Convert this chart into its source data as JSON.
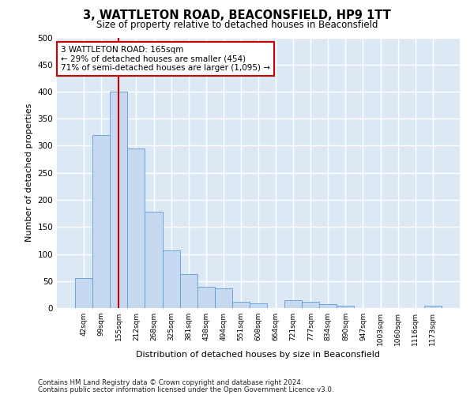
{
  "title": "3, WATTLETON ROAD, BEACONSFIELD, HP9 1TT",
  "subtitle": "Size of property relative to detached houses in Beaconsfield",
  "xlabel": "Distribution of detached houses by size in Beaconsfield",
  "ylabel": "Number of detached properties",
  "footnote1": "Contains HM Land Registry data © Crown copyright and database right 2024.",
  "footnote2": "Contains public sector information licensed under the Open Government Licence v3.0.",
  "categories": [
    "42sqm",
    "99sqm",
    "155sqm",
    "212sqm",
    "268sqm",
    "325sqm",
    "381sqm",
    "438sqm",
    "494sqm",
    "551sqm",
    "608sqm",
    "664sqm",
    "721sqm",
    "777sqm",
    "834sqm",
    "890sqm",
    "947sqm",
    "1003sqm",
    "1060sqm",
    "1116sqm",
    "1173sqm"
  ],
  "values": [
    55,
    320,
    400,
    295,
    178,
    107,
    63,
    40,
    36,
    11,
    9,
    0,
    15,
    11,
    8,
    4,
    0,
    0,
    0,
    0,
    4
  ],
  "bar_color": "#c6d9f0",
  "bar_edge_color": "#5b9bd5",
  "vline_x_idx": 2,
  "vline_color": "#cc0000",
  "annotation_text": "3 WATTLETON ROAD: 165sqm\n← 29% of detached houses are smaller (454)\n71% of semi-detached houses are larger (1,095) →",
  "annotation_box_color": "#ffffff",
  "annotation_box_edge": "#cc0000",
  "ylim": [
    0,
    500
  ],
  "yticks": [
    0,
    50,
    100,
    150,
    200,
    250,
    300,
    350,
    400,
    450,
    500
  ],
  "bg_color": "#dce9f5",
  "fig_bg_color": "#ffffff",
  "grid_color": "#ffffff"
}
